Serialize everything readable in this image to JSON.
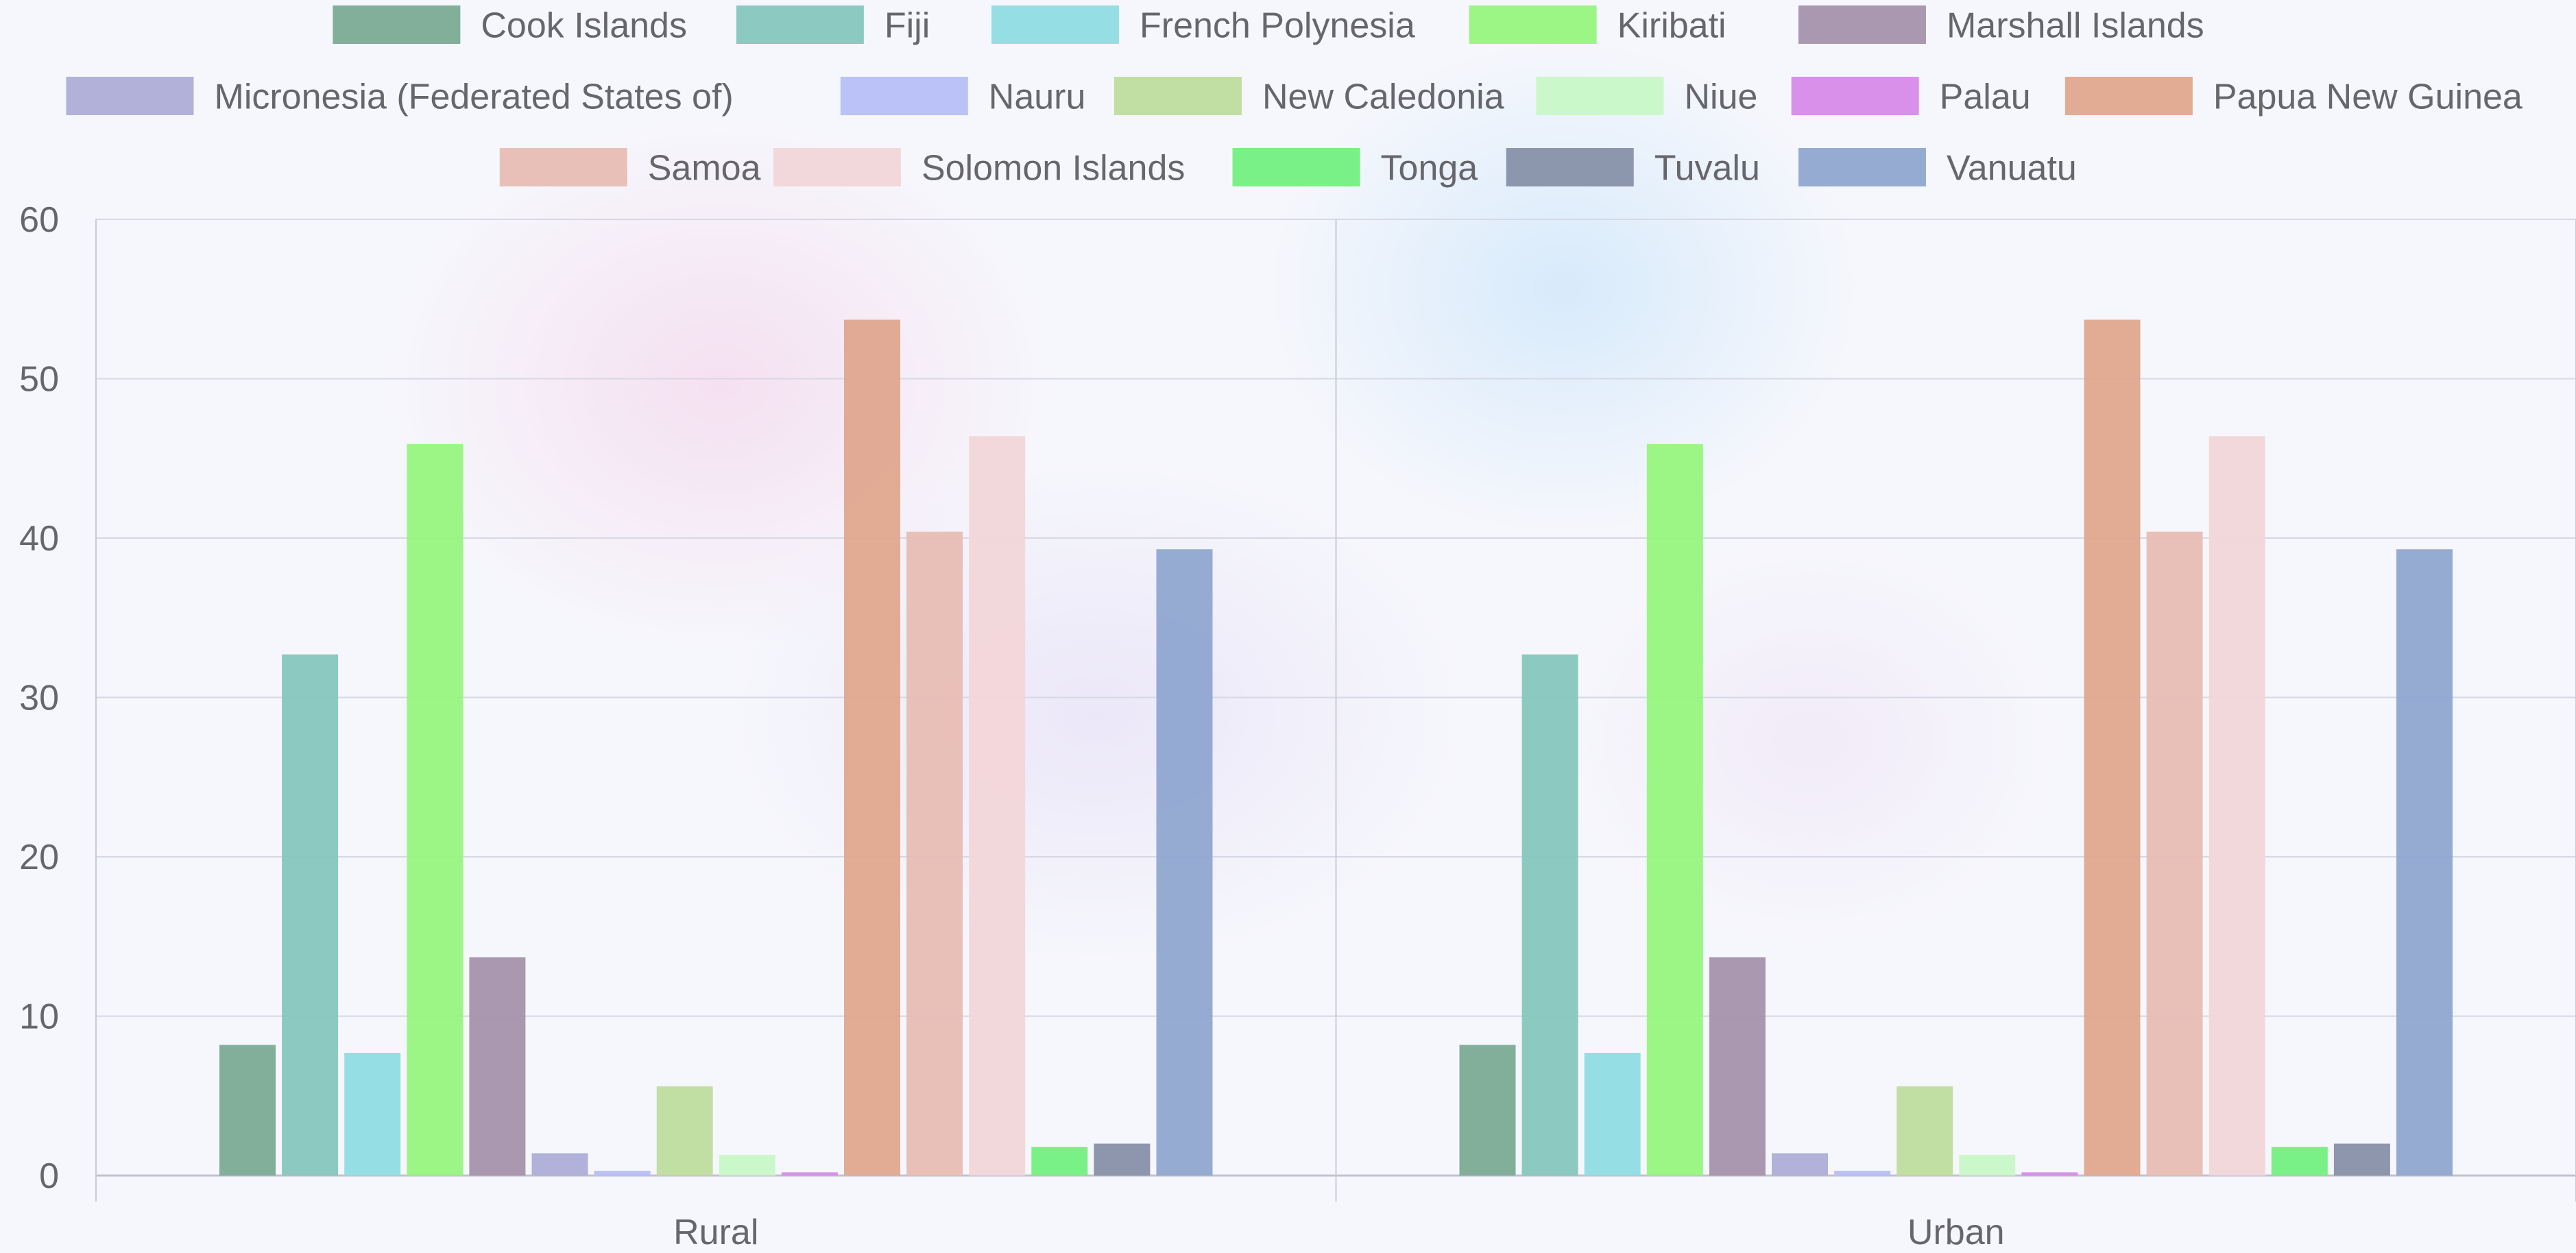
{
  "chart_data": {
    "type": "bar",
    "categories": [
      "Rural",
      "Urban"
    ],
    "ylim": [
      0,
      60
    ],
    "yticks": [
      "0",
      "10",
      "20",
      "30",
      "40",
      "50",
      "60"
    ],
    "grid": true,
    "legend_position": "top",
    "series": [
      {
        "name": "Cook Islands",
        "color": "#7aab93",
        "values": [
          8.2,
          8.2
        ]
      },
      {
        "name": "Fiji",
        "color": "#86c6bd",
        "values": [
          32.7,
          32.7
        ]
      },
      {
        "name": "French Polynesia",
        "color": "#8fdde3",
        "values": [
          7.7,
          7.7
        ]
      },
      {
        "name": "Kiribati",
        "color": "#96f57f",
        "values": [
          45.9,
          45.9
        ]
      },
      {
        "name": "Marshall Islands",
        "color": "#a592ad",
        "values": [
          13.7,
          13.7
        ]
      },
      {
        "name": "Micronesia (Federated States of)",
        "color": "#adadd8",
        "values": [
          1.4,
          1.4
        ]
      },
      {
        "name": "Nauru",
        "color": "#b7bff7",
        "values": [
          0.3,
          0.3
        ]
      },
      {
        "name": "New Caledonia",
        "color": "#bfdd9e",
        "values": [
          5.6,
          5.6
        ]
      },
      {
        "name": "Niue",
        "color": "#c8f8c7",
        "values": [
          1.3,
          1.3
        ]
      },
      {
        "name": "Palau",
        "color": "#d68ae9",
        "values": [
          0.2,
          0.2
        ]
      },
      {
        "name": "Papua New Guinea",
        "color": "#dfa78e",
        "values": [
          53.7,
          53.7
        ]
      },
      {
        "name": "Samoa",
        "color": "#e8bdb4",
        "values": [
          40.4,
          40.4
        ]
      },
      {
        "name": "Solomon Islands",
        "color": "#f2d6d9",
        "values": [
          46.4,
          46.4
        ]
      },
      {
        "name": "Tonga",
        "color": "#72f07f",
        "values": [
          1.8,
          1.8
        ]
      },
      {
        "name": "Tuvalu",
        "color": "#8790a8",
        "values": [
          2.0,
          2.0
        ]
      },
      {
        "name": "Vanuatu",
        "color": "#8fa6d0",
        "values": [
          39.3,
          39.3
        ]
      }
    ]
  }
}
